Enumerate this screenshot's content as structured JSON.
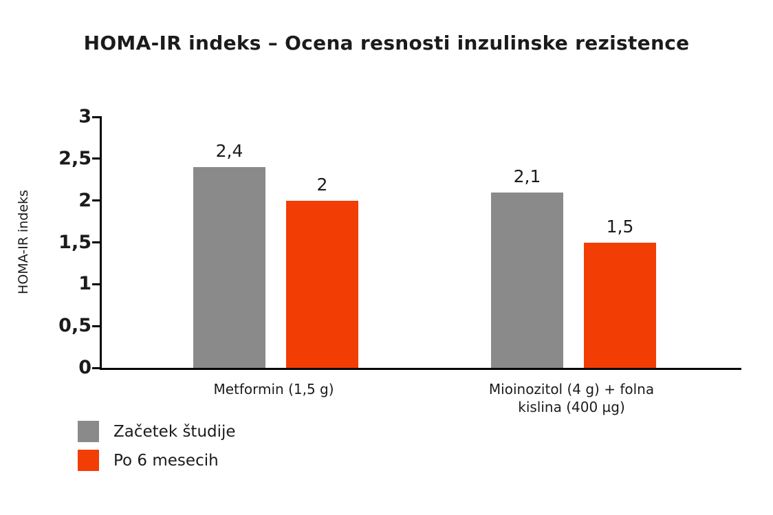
{
  "chart_data": {
    "type": "bar",
    "title": "HOMA-IR indeks – Ocena resnosti inzulinske rezistence",
    "xlabel": "",
    "ylabel": "HOMA-IR indeks",
    "ylim": [
      0,
      3
    ],
    "grid": false,
    "legend_position": "bottom-left",
    "yticks": [
      {
        "value": 0,
        "label": "0"
      },
      {
        "value": 0.5,
        "label": "0,5"
      },
      {
        "value": 1,
        "label": "1"
      },
      {
        "value": 1.5,
        "label": "1,5"
      },
      {
        "value": 2,
        "label": "2"
      },
      {
        "value": 2.5,
        "label": "2,5"
      },
      {
        "value": 3,
        "label": "3"
      }
    ],
    "categories": [
      "Metformin (1,5 g)",
      "Mioinozitol (4 g) + folna kislina (400 µg)"
    ],
    "series": [
      {
        "name": "Začetek študije",
        "color": "#8A8A8A",
        "values": [
          2.4,
          2.1
        ],
        "display_values": [
          "2,4",
          "2,1"
        ]
      },
      {
        "name": "Po 6 mesecih",
        "color": "#F23D05",
        "values": [
          2,
          1.5
        ],
        "display_values": [
          "2",
          "1,5"
        ]
      }
    ]
  }
}
